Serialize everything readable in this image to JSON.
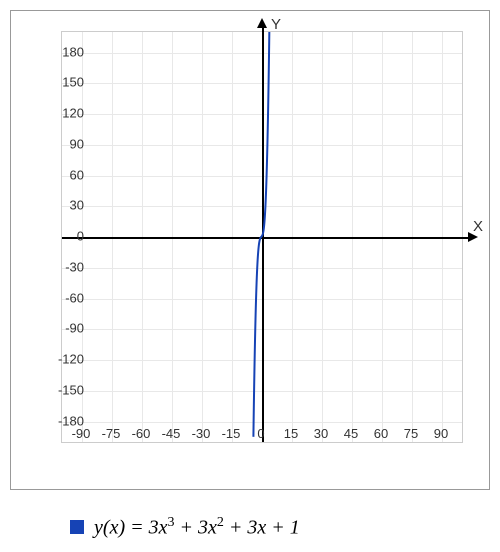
{
  "chart": {
    "type": "line",
    "background_color": "#ffffff",
    "border_color": "#999999",
    "grid_color": "#e8e8e8",
    "axis_color": "#000000",
    "tick_font_size": 13,
    "tick_color": "#333333",
    "x_axis": {
      "label": "X",
      "min": -100,
      "max": 100,
      "ticks": [
        -90,
        -75,
        -60,
        -45,
        -30,
        -15,
        0,
        15,
        30,
        45,
        60,
        75,
        90
      ]
    },
    "y_axis": {
      "label": "Y",
      "min": -200,
      "max": 200,
      "ticks": [
        -180,
        -150,
        -120,
        -90,
        -60,
        -30,
        0,
        30,
        60,
        90,
        120,
        150,
        180
      ]
    },
    "series": [
      {
        "name": "y(x)",
        "color": "#1643b5",
        "line_width": 2,
        "formula_html": "<i>y</i>(<i>x</i>) = 3<i>x</i><sup>3</sup> + 3<i>x</i><sup>2</sup> + 3<i>x</i> + 1",
        "coeffs": [
          3,
          3,
          3,
          1
        ]
      }
    ]
  },
  "legend": {
    "swatch_size": 14,
    "font_family": "Times New Roman, serif",
    "font_size": 20
  }
}
